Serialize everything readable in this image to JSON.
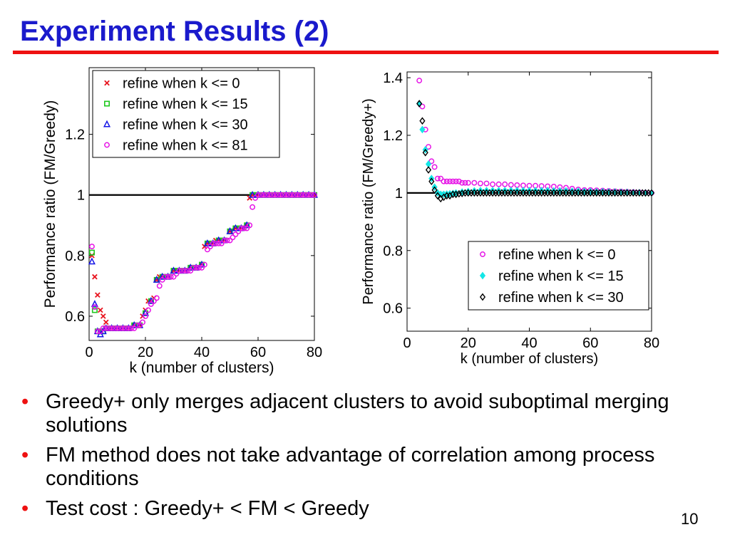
{
  "slide": {
    "title": "Experiment Results (2)",
    "title_color": "#1a1acc",
    "rule_color": "#ee1111",
    "bullet_color": "#ee1111",
    "bullets": [
      "Greedy+ only merges adjacent clusters to avoid suboptimal merging solutions",
      "FM method does not take advantage of correlation among process conditions",
      "Test cost :  Greedy+ < FM < Greedy"
    ],
    "page_number": "10"
  },
  "chart_data": [
    {
      "type": "scatter",
      "xlabel": "k (number of clusters)",
      "ylabel": "Performance ratio (FM/Greedy)",
      "xlim": [
        0,
        80
      ],
      "ylim": [
        0.52,
        1.42
      ],
      "xticks": [
        0,
        20,
        40,
        60,
        80
      ],
      "yticks": [
        0.6,
        0.8,
        1,
        1.2
      ],
      "ytick_labels": [
        "0.6",
        "0.8",
        "1",
        "1.2"
      ],
      "grid": false,
      "legend_position": "top-left",
      "reference_line": {
        "y": 1,
        "color": "#000000"
      },
      "series": [
        {
          "name": "refine when k <= 0",
          "marker": "x",
          "color": "#e8141e",
          "x": [
            1,
            2,
            3,
            4,
            5,
            6,
            7,
            8,
            10,
            12,
            14,
            16,
            18,
            19,
            20,
            21,
            22,
            23,
            24,
            25,
            26,
            27,
            28,
            30,
            32,
            34,
            36,
            38,
            40,
            41,
            42,
            43,
            44,
            45,
            46,
            47,
            48,
            50,
            52,
            54,
            55,
            56,
            57,
            58,
            59,
            60,
            62,
            64,
            66,
            68,
            70,
            72,
            74,
            76,
            78,
            80
          ],
          "y": [
            0.8,
            0.73,
            0.67,
            0.62,
            0.6,
            0.58,
            0.56,
            0.56,
            0.56,
            0.56,
            0.56,
            0.57,
            0.57,
            0.6,
            0.62,
            0.65,
            0.65,
            0.66,
            0.72,
            0.73,
            0.73,
            0.73,
            0.73,
            0.75,
            0.75,
            0.75,
            0.76,
            0.76,
            0.77,
            0.83,
            0.84,
            0.84,
            0.84,
            0.85,
            0.85,
            0.85,
            0.85,
            0.88,
            0.89,
            0.89,
            0.89,
            0.9,
            0.99,
            1.0,
            1.0,
            1.0,
            1.0,
            1.0,
            1.0,
            1.0,
            1.0,
            1.0,
            1.0,
            1.0,
            1.0,
            1.0
          ]
        },
        {
          "name": "refine when k <= 15",
          "marker": "square",
          "color": "#1ec81e",
          "x": [
            1,
            2,
            3,
            4,
            5,
            6,
            8,
            10,
            12,
            14,
            16,
            18,
            20,
            22,
            24,
            26,
            28,
            30,
            32,
            34,
            36,
            38,
            40,
            42,
            44,
            46,
            48,
            50,
            52,
            54,
            56,
            58,
            60,
            62,
            64,
            66,
            68,
            70,
            72,
            74,
            76,
            78,
            80
          ],
          "y": [
            0.81,
            0.62,
            0.55,
            0.55,
            0.55,
            0.56,
            0.56,
            0.56,
            0.56,
            0.56,
            0.57,
            0.57,
            0.61,
            0.65,
            0.72,
            0.73,
            0.73,
            0.75,
            0.75,
            0.75,
            0.76,
            0.76,
            0.77,
            0.84,
            0.84,
            0.85,
            0.85,
            0.88,
            0.89,
            0.89,
            0.9,
            1.0,
            1.0,
            1.0,
            1.0,
            1.0,
            1.0,
            1.0,
            1.0,
            1.0,
            1.0,
            1.0,
            1.0
          ]
        },
        {
          "name": "refine when k <= 30",
          "marker": "triangle",
          "color": "#1414e6",
          "x": [
            1,
            2,
            3,
            4,
            5,
            6,
            8,
            10,
            12,
            14,
            16,
            18,
            20,
            22,
            24,
            26,
            28,
            30,
            32,
            34,
            36,
            38,
            40,
            42,
            44,
            46,
            48,
            50,
            52,
            54,
            56,
            58,
            60,
            62,
            64,
            66,
            68,
            70,
            72,
            74,
            76,
            78,
            80
          ],
          "y": [
            0.78,
            0.64,
            0.55,
            0.54,
            0.55,
            0.56,
            0.56,
            0.56,
            0.56,
            0.56,
            0.57,
            0.57,
            0.61,
            0.65,
            0.72,
            0.73,
            0.73,
            0.75,
            0.75,
            0.75,
            0.76,
            0.76,
            0.77,
            0.84,
            0.84,
            0.85,
            0.85,
            0.88,
            0.89,
            0.89,
            0.9,
            1.0,
            1.0,
            1.0,
            1.0,
            1.0,
            1.0,
            1.0,
            1.0,
            1.0,
            1.0,
            1.0,
            1.0
          ]
        },
        {
          "name": "refine when k <= 81",
          "marker": "circle",
          "color": "#e614e6",
          "x": [
            1,
            2,
            3,
            4,
            5,
            6,
            7,
            8,
            9,
            10,
            11,
            12,
            13,
            14,
            15,
            16,
            17,
            18,
            19,
            20,
            21,
            22,
            23,
            24,
            25,
            26,
            27,
            28,
            29,
            30,
            31,
            32,
            33,
            34,
            35,
            36,
            37,
            38,
            39,
            40,
            41,
            42,
            43,
            44,
            45,
            46,
            47,
            48,
            49,
            50,
            51,
            52,
            53,
            54,
            55,
            56,
            57,
            58,
            59,
            60,
            61,
            62,
            63,
            64,
            65,
            66,
            67,
            68,
            69,
            70,
            71,
            72,
            73,
            74,
            75,
            76,
            77,
            78,
            79,
            80
          ],
          "y": [
            0.83,
            0.63,
            0.55,
            0.55,
            0.56,
            0.56,
            0.56,
            0.56,
            0.56,
            0.56,
            0.56,
            0.56,
            0.56,
            0.56,
            0.56,
            0.56,
            0.57,
            0.57,
            0.58,
            0.6,
            0.62,
            0.64,
            0.65,
            0.66,
            0.7,
            0.72,
            0.73,
            0.73,
            0.73,
            0.73,
            0.74,
            0.75,
            0.75,
            0.75,
            0.75,
            0.75,
            0.76,
            0.76,
            0.76,
            0.76,
            0.77,
            0.82,
            0.83,
            0.84,
            0.84,
            0.84,
            0.84,
            0.85,
            0.85,
            0.85,
            0.86,
            0.87,
            0.88,
            0.89,
            0.89,
            0.89,
            0.9,
            0.96,
            0.99,
            1.0,
            1.0,
            1.0,
            1.0,
            1.0,
            1.0,
            1.0,
            1.0,
            1.0,
            1.0,
            1.0,
            1.0,
            1.0,
            1.0,
            1.0,
            1.0,
            1.0,
            1.0,
            1.0,
            1.0,
            1.0
          ]
        }
      ]
    },
    {
      "type": "scatter",
      "xlabel": "k (number of clusters)",
      "ylabel": "Performance ratio (FM/Greedy+)",
      "xlim": [
        0,
        80
      ],
      "ylim": [
        0.52,
        1.42
      ],
      "xticks": [
        0,
        20,
        40,
        60,
        80
      ],
      "yticks": [
        0.6,
        0.8,
        1,
        1.2,
        1.4
      ],
      "ytick_labels": [
        "0.6",
        "0.8",
        "1",
        "1.2",
        "1.4"
      ],
      "grid": false,
      "legend_position": "bottom-right",
      "reference_line": {
        "y": 1,
        "color": "#000000"
      },
      "series": [
        {
          "name": "refine when k <= 0",
          "marker": "circle",
          "color": "#e614e6",
          "x": [
            4,
            5,
            6,
            7,
            8,
            9,
            10,
            11,
            12,
            13,
            14,
            15,
            16,
            17,
            18,
            19,
            20,
            22,
            24,
            26,
            28,
            30,
            32,
            34,
            36,
            38,
            40,
            42,
            44,
            46,
            48,
            50,
            52,
            54,
            56,
            58,
            60,
            62,
            64,
            66,
            68,
            70,
            72,
            74,
            76,
            78,
            80
          ],
          "y": [
            1.39,
            1.3,
            1.22,
            1.16,
            1.11,
            1.09,
            1.05,
            1.05,
            1.04,
            1.04,
            1.04,
            1.04,
            1.04,
            1.04,
            1.035,
            1.035,
            1.035,
            1.035,
            1.033,
            1.033,
            1.03,
            1.03,
            1.03,
            1.028,
            1.027,
            1.026,
            1.025,
            1.025,
            1.024,
            1.023,
            1.022,
            1.02,
            1.018,
            1.015,
            1.012,
            1.01,
            1.01,
            1.009,
            1.008,
            1.007,
            1.006,
            1.005,
            1.004,
            1.003,
            1.002,
            1.001,
            1.0
          ]
        },
        {
          "name": "refine when k <= 15",
          "marker": "diamond-filled",
          "color": "#14e6e6",
          "x": [
            4,
            5,
            6,
            7,
            8,
            9,
            10,
            11,
            12,
            13,
            14,
            15,
            16,
            18,
            20,
            22,
            24,
            26,
            28,
            30,
            32,
            34,
            36,
            38,
            40,
            42,
            44,
            46,
            48,
            50,
            52,
            54,
            56,
            58,
            60,
            62,
            64,
            66,
            68,
            70,
            72,
            74,
            76,
            78,
            80
          ],
          "y": [
            1.31,
            1.22,
            1.15,
            1.1,
            1.05,
            1.02,
            1.0,
            0.995,
            0.995,
            0.996,
            0.997,
            0.998,
            1.0,
            1.003,
            1.005,
            1.007,
            1.008,
            1.008,
            1.008,
            1.008,
            1.008,
            1.008,
            1.008,
            1.008,
            1.008,
            1.008,
            1.008,
            1.008,
            1.007,
            1.007,
            1.007,
            1.006,
            1.006,
            1.005,
            1.005,
            1.004,
            1.004,
            1.003,
            1.003,
            1.002,
            1.002,
            1.001,
            1.001,
            1.0,
            1.0
          ]
        },
        {
          "name": "refine when k <= 30",
          "marker": "diamond",
          "color": "#000000",
          "x": [
            4,
            5,
            6,
            7,
            8,
            9,
            10,
            11,
            12,
            13,
            14,
            15,
            16,
            17,
            18,
            19,
            20,
            21,
            22,
            23,
            24,
            25,
            26,
            27,
            28,
            29,
            30,
            31,
            32,
            33,
            34,
            35,
            36,
            37,
            38,
            39,
            40,
            41,
            42,
            43,
            44,
            45,
            46,
            47,
            48,
            49,
            50,
            51,
            52,
            53,
            54,
            55,
            56,
            57,
            58,
            59,
            60,
            61,
            62,
            63,
            64,
            65,
            66,
            67,
            68,
            69,
            70,
            71,
            72,
            73,
            74,
            75,
            76,
            77,
            78,
            79,
            80
          ],
          "y": [
            1.31,
            1.25,
            1.14,
            1.08,
            1.04,
            1.01,
            0.99,
            0.98,
            0.985,
            0.99,
            0.99,
            0.995,
            0.995,
            0.997,
            0.998,
            1.0,
            1.0,
            1.0,
            1.0,
            1.0,
            1.0,
            1.0,
            1.0,
            1.0,
            1.0,
            1.0,
            1.0,
            1.0,
            1.0,
            1.0,
            1.0,
            1.0,
            1.0,
            1.0,
            1.0,
            1.0,
            1.0,
            1.0,
            1.0,
            1.0,
            1.0,
            1.0,
            1.0,
            1.0,
            1.0,
            1.0,
            1.0,
            1.0,
            1.0,
            1.0,
            1.0,
            1.0,
            1.0,
            1.0,
            1.0,
            1.0,
            1.0,
            1.0,
            1.0,
            1.0,
            1.0,
            1.0,
            1.0,
            1.0,
            1.0,
            1.0,
            1.0,
            1.0,
            1.0,
            1.0,
            1.0,
            1.0,
            1.0,
            1.0,
            1.0,
            1.0,
            1.0
          ]
        }
      ]
    }
  ]
}
